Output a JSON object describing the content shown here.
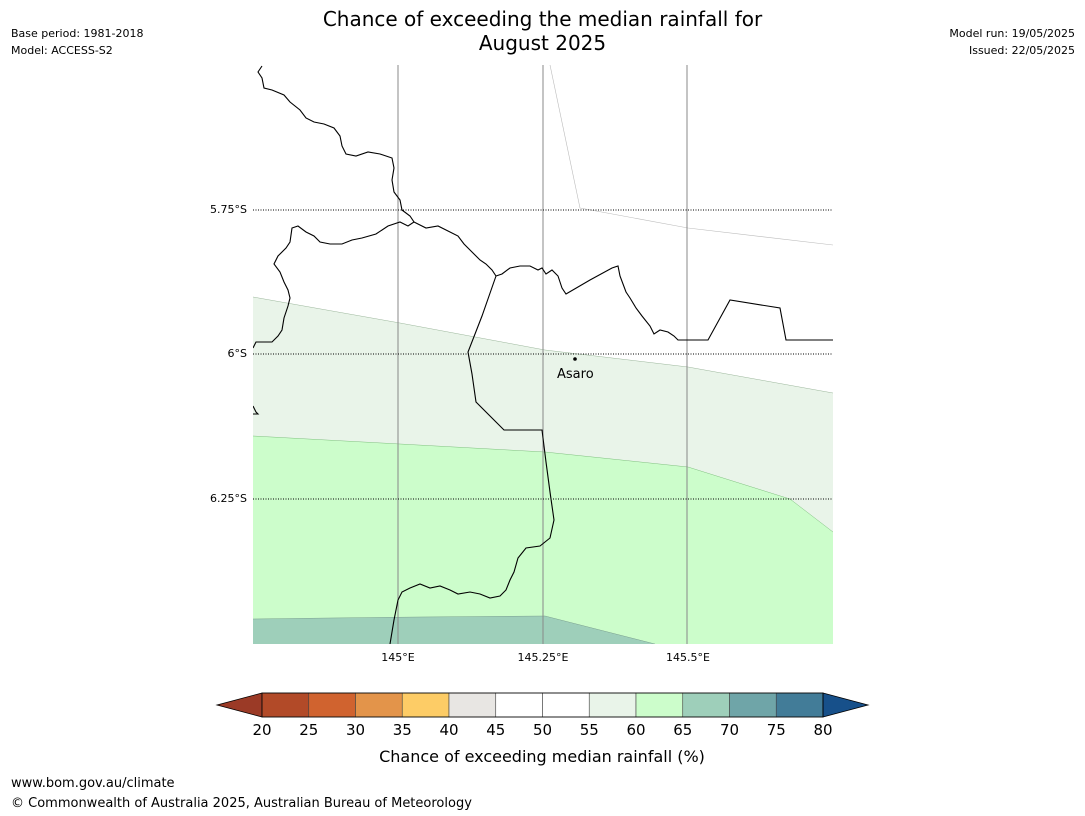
{
  "header": {
    "title_line1": "Chance of exceeding the median rainfall for",
    "title_line2": "August 2025",
    "base_period": "Base period: 1981-2018",
    "model": "Model: ACCESS-S2",
    "model_run": "Model run: 19/05/2025",
    "issued": "Issued: 22/05/2025"
  },
  "map": {
    "lat_labels": [
      "5.75°S",
      "6°S",
      "6.25°S"
    ],
    "lon_labels": [
      "145°E",
      "145.25°E",
      "145.5°E"
    ],
    "place": {
      "name": "Asaro"
    }
  },
  "colorbar": {
    "ticks": [
      "20",
      "25",
      "30",
      "35",
      "40",
      "45",
      "50",
      "55",
      "60",
      "65",
      "70",
      "75",
      "80"
    ],
    "label": "Chance of exceeding median rainfall (%)",
    "colors": {
      "under": "#9b3a26",
      "bins": [
        "#b24a28",
        "#d0632f",
        "#e3944a",
        "#fdcc66",
        "#e8e6e3",
        "#ffffff",
        "#ffffff",
        "#e9f4e9",
        "#ccfdcb",
        "#9ecfba",
        "#6fa5a8",
        "#427c98"
      ],
      "over": "#17508a"
    }
  },
  "footer": {
    "url": "www.bom.gov.au/climate",
    "copyright": "© Commonwealth of Australia 2025, Australian Bureau of Meteorology"
  }
}
